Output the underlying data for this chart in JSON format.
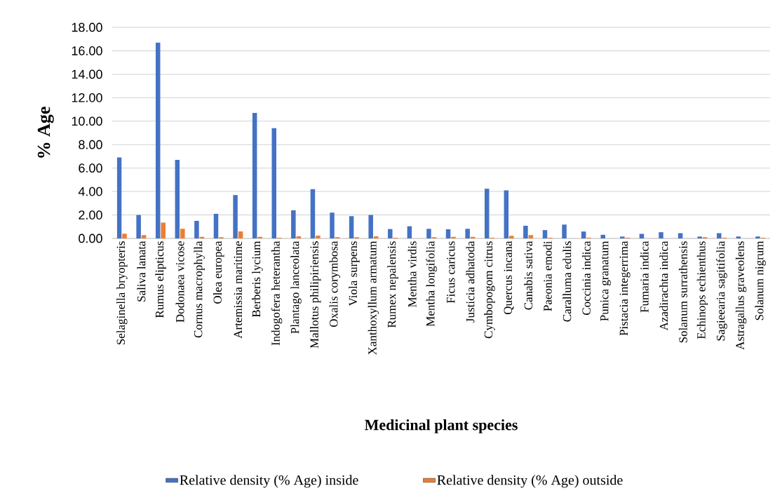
{
  "chart_data": {
    "type": "bar",
    "xlabel": "Medicinal plant species",
    "ylabel": "% Age",
    "categories": [
      "Selaginella bryopteris",
      "Saliva lanata",
      "Rumus elipticus",
      "Dodonaea vicose",
      "Cornus macrophylla",
      "Olea europea",
      "Artemissia maritime",
      "Berberis lycium",
      "Indogofera heterantha",
      "Plantago lanceolata",
      "Mallotus philipiriensis",
      "Oxalis corymbosa",
      "Viola surpens",
      "Xanthoxyllum armatum",
      "Rumex nepalensis",
      "Mentha virdis",
      "Mentha longifolia",
      "Ficus caricus",
      "Justicia adhatoda",
      "Cymbopogom citrus",
      "Quercus incana",
      "Canabis sativa",
      "Paeonia emodi",
      "Caralluma edulis",
      "Coccinia indica",
      "Punica granatum",
      "Pistacia integerrima",
      "Fumaria indica",
      "Azadirachta indica",
      "Solanum surrathensis",
      "Echinops echienthus",
      "Sagieearia sagitifolia",
      "Astragallus graveolens",
      "Solanum nigrum"
    ],
    "series": [
      {
        "name": "Relative density (% Age) inside",
        "color": "#4472c4",
        "values": [
          6.9,
          2.0,
          16.7,
          6.7,
          1.5,
          2.1,
          3.7,
          10.7,
          9.4,
          2.4,
          4.2,
          2.2,
          1.9,
          2.0,
          0.8,
          1.04,
          0.82,
          0.78,
          0.82,
          4.24,
          4.1,
          1.08,
          0.71,
          1.18,
          0.59,
          0.31,
          0.16,
          0.39,
          0.53,
          0.45,
          0.16,
          0.45,
          0.16,
          0.16
        ]
      },
      {
        "name": "Relative density (% Age) outside",
        "color": "#ed7d31",
        "values": [
          0.4,
          0.28,
          1.36,
          0.82,
          0.14,
          0.1,
          0.6,
          0.14,
          0.06,
          0.18,
          0.24,
          0.1,
          0.1,
          0.18,
          0.06,
          0,
          0.1,
          0.14,
          0.14,
          0.06,
          0.22,
          0.29,
          0.06,
          0,
          0.06,
          0,
          0.06,
          0,
          0,
          0,
          0.1,
          0.06,
          0,
          0.06
        ]
      }
    ],
    "ylim": [
      0,
      18
    ],
    "yticks": [
      {
        "value": 0,
        "label": "0.00"
      },
      {
        "value": 2,
        "label": "2.00"
      },
      {
        "value": 4,
        "label": "4.00"
      },
      {
        "value": 6,
        "label": "6.00"
      },
      {
        "value": 8,
        "label": "8.00"
      },
      {
        "value": 10,
        "label": "10.00"
      },
      {
        "value": 12,
        "label": "12.00"
      },
      {
        "value": 14,
        "label": "14.00"
      },
      {
        "value": 16,
        "label": "16.00"
      },
      {
        "value": 18,
        "label": "18.00"
      }
    ],
    "grid": "y",
    "legend": "bottom"
  }
}
